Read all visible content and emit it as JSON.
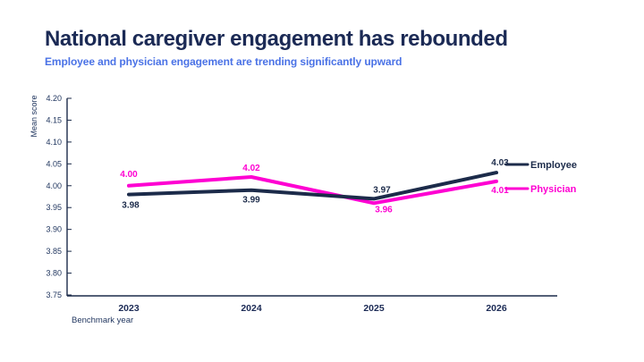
{
  "page": {
    "title": "National caregiver engagement has rebounded",
    "subtitle": "Employee and physician engagement are trending significantly upward"
  },
  "colors": {
    "title_navy": "#1b2a55",
    "subtitle_blue": "#4a72e6",
    "axis_navy": "#1c2b4a",
    "tick_label_navy": "#223760",
    "employee_navy": "#1c2b4a",
    "physician_magenta": "#fe00d2"
  },
  "chart_data": {
    "type": "line",
    "categories": [
      "2023",
      "2024",
      "2025",
      "2026"
    ],
    "series": [
      {
        "name": "Employee",
        "values": [
          3.98,
          3.99,
          3.97,
          4.03
        ],
        "value_labels": [
          "3.98",
          "3.99",
          "3.97",
          "4.03"
        ],
        "color": "#1c2b4a"
      },
      {
        "name": "Physician",
        "values": [
          4.0,
          4.02,
          3.96,
          4.01
        ],
        "value_labels": [
          "4.00",
          "4.02",
          "3.96",
          "4.01"
        ],
        "color": "#fe00d2"
      }
    ],
    "xlabel": "Benchmark year",
    "ylabel": "Mean score",
    "ylim": [
      3.75,
      4.2
    ],
    "ytick_step": 0.05,
    "yticks": [
      "4.20",
      "4.15",
      "4.10",
      "4.05",
      "4.00",
      "3.95",
      "3.90",
      "3.85",
      "3.80",
      "3.75"
    ],
    "grid": false,
    "legend_position": "right",
    "legend": [
      "Employee",
      "Physician"
    ]
  }
}
